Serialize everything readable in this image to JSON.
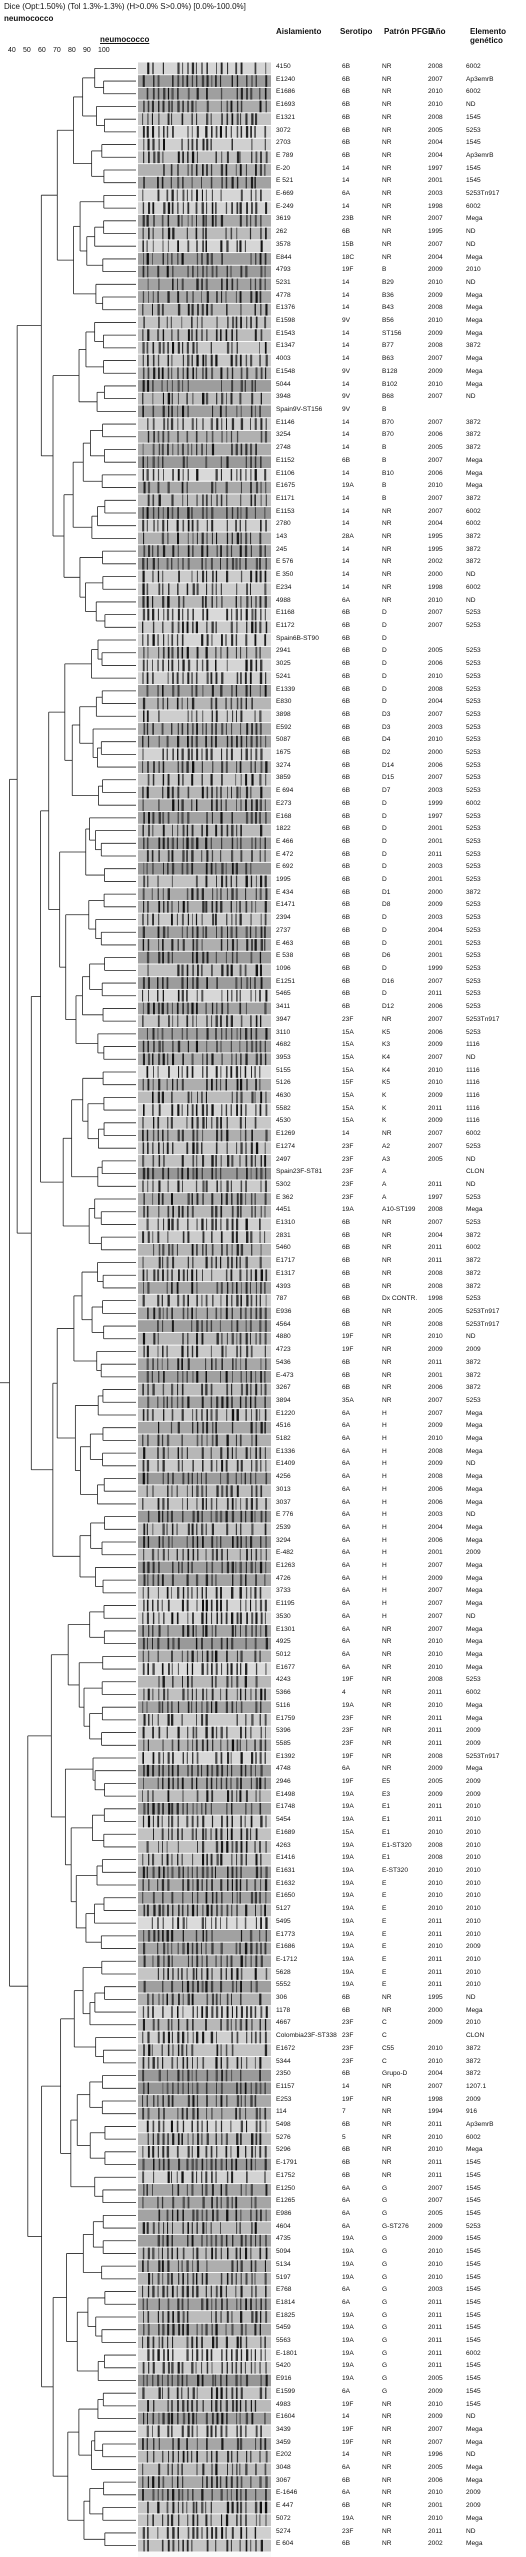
{
  "header": {
    "dice_line": "Dice (Opt:1.50%) (Tol 1.3%-1.3%) (H>0.0% S>0.0%) [0.0%-100.0%]",
    "species_top": "neumococco",
    "species_gel": "neumococco",
    "scale_ticks": [
      "40",
      "50",
      "60",
      "70",
      "80",
      "90",
      "100"
    ]
  },
  "columns": {
    "aislamiento": "Aislamiento",
    "serotipo": "Serotipo",
    "pfge": "Patrón PFGE",
    "year": "Año",
    "genetico": "Elemento genético"
  },
  "rows": [
    [
      "4150",
      "6B",
      "NR",
      "2008",
      "6002"
    ],
    [
      "E1240",
      "6B",
      "NR",
      "2007",
      "Ap3emrB"
    ],
    [
      "E1686",
      "6B",
      "NR",
      "2010",
      "6002"
    ],
    [
      "E1693",
      "6B",
      "NR",
      "2010",
      "ND"
    ],
    [
      "E1321",
      "6B",
      "NR",
      "2008",
      "1545"
    ],
    [
      "3072",
      "6B",
      "NR",
      "2005",
      "5253"
    ],
    [
      "2703",
      "6B",
      "NR",
      "2004",
      "1545"
    ],
    [
      "E 789",
      "6B",
      "NR",
      "2004",
      "Ap3emrB"
    ],
    [
      "E-20",
      "14",
      "NR",
      "1997",
      "1545"
    ],
    [
      "E 521",
      "14",
      "NR",
      "2001",
      "1545"
    ],
    [
      "E-669",
      "6A",
      "NR",
      "2003",
      "5253Tn917"
    ],
    [
      "E-249",
      "14",
      "NR",
      "1998",
      "6002"
    ],
    [
      "3619",
      "23B",
      "NR",
      "2007",
      "Mega"
    ],
    [
      "262",
      "6B",
      "NR",
      "1995",
      "ND"
    ],
    [
      "3578",
      "15B",
      "NR",
      "2007",
      "ND"
    ],
    [
      "E844",
      "18C",
      "NR",
      "2004",
      "Mega"
    ],
    [
      "4793",
      "19F",
      "B",
      "2009",
      "2010"
    ],
    [
      "5231",
      "14",
      "B29",
      "2010",
      "ND"
    ],
    [
      "4778",
      "14",
      "B36",
      "2009",
      "Mega"
    ],
    [
      "E1376",
      "14",
      "B43",
      "2008",
      "Mega"
    ],
    [
      "E1598",
      "9V",
      "B56",
      "2010",
      "Mega"
    ],
    [
      "E1543",
      "14",
      "ST156",
      "2009",
      "Mega"
    ],
    [
      "E1347",
      "14",
      "B77",
      "2008",
      "3872"
    ],
    [
      "4003",
      "14",
      "B63",
      "2007",
      "Mega"
    ],
    [
      "E1548",
      "9V",
      "B128",
      "2009",
      "Mega"
    ],
    [
      "5044",
      "14",
      "B102",
      "2010",
      "Mega"
    ],
    [
      "3948",
      "9V",
      "B68",
      "2007",
      "ND"
    ],
    [
      "Spain9V-ST156",
      "9V",
      "B",
      "",
      ""
    ],
    [
      "E1146",
      "14",
      "B70",
      "2007",
      "3872"
    ],
    [
      "3254",
      "14",
      "B70",
      "2006",
      "3872"
    ],
    [
      "2748",
      "14",
      "B",
      "2005",
      "3872"
    ],
    [
      "E1152",
      "6B",
      "B",
      "2007",
      "Mega"
    ],
    [
      "E1106",
      "14",
      "B10",
      "2006",
      "Mega"
    ],
    [
      "E1675",
      "19A",
      "B",
      "2010",
      "Mega"
    ],
    [
      "E1171",
      "14",
      "B",
      "2007",
      "3872"
    ],
    [
      "E1153",
      "14",
      "NR",
      "2007",
      "6002"
    ],
    [
      "2780",
      "14",
      "NR",
      "2004",
      "6002"
    ],
    [
      "143",
      "28A",
      "NR",
      "1995",
      "3872"
    ],
    [
      "245",
      "14",
      "NR",
      "1995",
      "3872"
    ],
    [
      "E 576",
      "14",
      "NR",
      "2002",
      "3872"
    ],
    [
      "E 350",
      "14",
      "NR",
      "2000",
      "ND"
    ],
    [
      "E234",
      "14",
      "NR",
      "1998",
      "6002"
    ],
    [
      "4988",
      "6A",
      "NR",
      "2010",
      "ND"
    ],
    [
      "E1168",
      "6B",
      "D",
      "2007",
      "5253"
    ],
    [
      "E1172",
      "6B",
      "D",
      "2007",
      "5253"
    ],
    [
      "Spain6B-ST90",
      "6B",
      "D",
      "",
      ""
    ],
    [
      "2941",
      "6B",
      "D",
      "2005",
      "5253"
    ],
    [
      "3025",
      "6B",
      "D",
      "2006",
      "5253"
    ],
    [
      "5241",
      "6B",
      "D",
      "2010",
      "5253"
    ],
    [
      "E1339",
      "6B",
      "D",
      "2008",
      "5253"
    ],
    [
      "E830",
      "6B",
      "D",
      "2004",
      "5253"
    ],
    [
      "3898",
      "6B",
      "D3",
      "2007",
      "5253"
    ],
    [
      "E592",
      "6B",
      "D3",
      "2003",
      "5253"
    ],
    [
      "5087",
      "6B",
      "D4",
      "2010",
      "5253"
    ],
    [
      "1675",
      "6B",
      "D2",
      "2000",
      "5253"
    ],
    [
      "3274",
      "6B",
      "D14",
      "2006",
      "5253"
    ],
    [
      "3859",
      "6B",
      "D15",
      "2007",
      "5253"
    ],
    [
      "E 694",
      "6B",
      "D7",
      "2003",
      "5253"
    ],
    [
      "E273",
      "6B",
      "D",
      "1999",
      "6002"
    ],
    [
      "E168",
      "6B",
      "D",
      "1997",
      "5253"
    ],
    [
      "1822",
      "6B",
      "D",
      "2001",
      "5253"
    ],
    [
      "E 466",
      "6B",
      "D",
      "2001",
      "5253"
    ],
    [
      "E 472",
      "6B",
      "D",
      "2011",
      "5253"
    ],
    [
      "E 692",
      "6B",
      "D",
      "2003",
      "5253"
    ],
    [
      "1995",
      "6B",
      "D",
      "2001",
      "5253"
    ],
    [
      "E 434",
      "6B",
      "D1",
      "2000",
      "3872"
    ],
    [
      "E1471",
      "6B",
      "D8",
      "2009",
      "5253"
    ],
    [
      "2394",
      "6B",
      "D",
      "2003",
      "5253"
    ],
    [
      "2737",
      "6B",
      "D",
      "2004",
      "5253"
    ],
    [
      "E 463",
      "6B",
      "D",
      "2001",
      "5253"
    ],
    [
      "E 538",
      "6B",
      "D6",
      "2001",
      "5253"
    ],
    [
      "1096",
      "6B",
      "D",
      "1999",
      "5253"
    ],
    [
      "E1251",
      "6B",
      "D16",
      "2007",
      "5253"
    ],
    [
      "5465",
      "6B",
      "D",
      "2011",
      "5253"
    ],
    [
      "3411",
      "6B",
      "D12",
      "2006",
      "5253"
    ],
    [
      "3947",
      "23F",
      "NR",
      "2007",
      "5253Tn917"
    ],
    [
      "3110",
      "15A",
      "K5",
      "2006",
      "5253"
    ],
    [
      "4682",
      "15A",
      "K3",
      "2009",
      "1116"
    ],
    [
      "3953",
      "15A",
      "K4",
      "2007",
      "ND"
    ],
    [
      "5155",
      "15A",
      "K4",
      "2010",
      "1116"
    ],
    [
      "5126",
      "15F",
      "K5",
      "2010",
      "1116"
    ],
    [
      "4630",
      "15A",
      "K",
      "2009",
      "1116"
    ],
    [
      "5582",
      "15A",
      "K",
      "2011",
      "1116"
    ],
    [
      "4530",
      "15A",
      "K",
      "2009",
      "1116"
    ],
    [
      "E1269",
      "14",
      "NR",
      "2007",
      "6002"
    ],
    [
      "E1274",
      "23F",
      "A2",
      "2007",
      "5253"
    ],
    [
      "2497",
      "23F",
      "A3",
      "2005",
      "ND"
    ],
    [
      "Spain23F-ST81",
      "23F",
      "A",
      "",
      "CLON"
    ],
    [
      "5302",
      "23F",
      "A",
      "2011",
      "ND"
    ],
    [
      "E 362",
      "23F",
      "A",
      "1997",
      "5253"
    ],
    [
      "4451",
      "19A",
      "A10-ST199",
      "2008",
      "Mega"
    ],
    [
      "E1310",
      "6B",
      "NR",
      "2007",
      "5253"
    ],
    [
      "2831",
      "6B",
      "NR",
      "2004",
      "3872"
    ],
    [
      "5460",
      "6B",
      "NR",
      "2011",
      "6002"
    ],
    [
      "E1717",
      "6B",
      "NR",
      "2011",
      "3872"
    ],
    [
      "E1317",
      "6B",
      "NR",
      "2008",
      "3872"
    ],
    [
      "4393",
      "6B",
      "NR",
      "2008",
      "3872"
    ],
    [
      "787",
      "6B",
      "Dx CONTR.",
      "1998",
      "5253"
    ],
    [
      "E936",
      "6B",
      "NR",
      "2005",
      "5253Tn917"
    ],
    [
      "4564",
      "6B",
      "NR",
      "2008",
      "5253Tn917"
    ],
    [
      "4880",
      "19F",
      "NR",
      "2010",
      "ND"
    ],
    [
      "4723",
      "19F",
      "NR",
      "2009",
      "2009"
    ],
    [
      "5436",
      "6B",
      "NR",
      "2011",
      "3872"
    ],
    [
      "E-473",
      "6B",
      "NR",
      "2001",
      "3872"
    ],
    [
      "3267",
      "6B",
      "NR",
      "2006",
      "3872"
    ],
    [
      "3894",
      "35A",
      "NR",
      "2007",
      "5253"
    ],
    [
      "E1220",
      "6A",
      "H",
      "2007",
      "Mega"
    ],
    [
      "4516",
      "6A",
      "H",
      "2009",
      "Mega"
    ],
    [
      "5182",
      "6A",
      "H",
      "2010",
      "Mega"
    ],
    [
      "E1336",
      "6A",
      "H",
      "2008",
      "Mega"
    ],
    [
      "E1409",
      "6A",
      "H",
      "2009",
      "ND"
    ],
    [
      "4256",
      "6A",
      "H",
      "2008",
      "Mega"
    ],
    [
      "3013",
      "6A",
      "H",
      "2006",
      "Mega"
    ],
    [
      "3037",
      "6A",
      "H",
      "2006",
      "Mega"
    ],
    [
      "E 776",
      "6A",
      "H",
      "2003",
      "ND"
    ],
    [
      "2539",
      "6A",
      "H",
      "2004",
      "Mega"
    ],
    [
      "3294",
      "6A",
      "H",
      "2006",
      "Mega"
    ],
    [
      "E-482",
      "6A",
      "H",
      "2001",
      "2009"
    ],
    [
      "E1263",
      "6A",
      "H",
      "2007",
      "Mega"
    ],
    [
      "4726",
      "6A",
      "H",
      "2009",
      "Mega"
    ],
    [
      "3733",
      "6A",
      "H",
      "2007",
      "Mega"
    ],
    [
      "E1195",
      "6A",
      "H",
      "2007",
      "Mega"
    ],
    [
      "3530",
      "6A",
      "H",
      "2007",
      "ND"
    ],
    [
      "E1301",
      "6A",
      "NR",
      "2007",
      "Mega"
    ],
    [
      "4925",
      "6A",
      "NR",
      "2010",
      "Mega"
    ],
    [
      "5012",
      "6A",
      "NR",
      "2010",
      "Mega"
    ],
    [
      "E1677",
      "6A",
      "NR",
      "2010",
      "Mega"
    ],
    [
      "4243",
      "19F",
      "NR",
      "2008",
      "5253"
    ],
    [
      "5366",
      "4",
      "NR",
      "2011",
      "6002"
    ],
    [
      "5116",
      "19A",
      "NR",
      "2010",
      "Mega"
    ],
    [
      "E1759",
      "23F",
      "NR",
      "2011",
      "Mega"
    ],
    [
      "5396",
      "23F",
      "NR",
      "2011",
      "2009"
    ],
    [
      "5585",
      "23F",
      "NR",
      "2011",
      "2009"
    ],
    [
      "E1392",
      "19F",
      "NR",
      "2008",
      "5253Tn917"
    ],
    [
      "4748",
      "6A",
      "NR",
      "2009",
      "Mega"
    ],
    [
      "2946",
      "19F",
      "E5",
      "2005",
      "2009"
    ],
    [
      "E1498",
      "19A",
      "E3",
      "2009",
      "2009"
    ],
    [
      "E1748",
      "19A",
      "E1",
      "2011",
      "2010"
    ],
    [
      "5454",
      "19A",
      "E1",
      "2011",
      "2010"
    ],
    [
      "E1689",
      "15A",
      "E1",
      "2010",
      "2010"
    ],
    [
      "4263",
      "19A",
      "E1-ST320",
      "2008",
      "2010"
    ],
    [
      "E1416",
      "19A",
      "E1",
      "2008",
      "2010"
    ],
    [
      "E1631",
      "19A",
      "E-ST320",
      "2010",
      "2010"
    ],
    [
      "E1632",
      "19A",
      "E",
      "2010",
      "2010"
    ],
    [
      "E1650",
      "19A",
      "E",
      "2010",
      "2010"
    ],
    [
      "5127",
      "19A",
      "E",
      "2010",
      "2010"
    ],
    [
      "5495",
      "19A",
      "E",
      "2011",
      "2010"
    ],
    [
      "E1773",
      "19A",
      "E",
      "2011",
      "2010"
    ],
    [
      "E1686",
      "19A",
      "E",
      "2010",
      "2009"
    ],
    [
      "E-1712",
      "19A",
      "E",
      "2011",
      "2010"
    ],
    [
      "5628",
      "19A",
      "E",
      "2011",
      "2010"
    ],
    [
      "5552",
      "19A",
      "E",
      "2011",
      "2010"
    ],
    [
      "306",
      "6B",
      "NR",
      "1995",
      "ND"
    ],
    [
      "1178",
      "6B",
      "NR",
      "2000",
      "Mega"
    ],
    [
      "4667",
      "23F",
      "C",
      "2009",
      "2010"
    ],
    [
      "Colombia23F-ST338",
      "23F",
      "C",
      "",
      "CLON"
    ],
    [
      "E1672",
      "23F",
      "C55",
      "2010",
      "3872"
    ],
    [
      "5344",
      "23F",
      "C",
      "2010",
      "3872"
    ],
    [
      "2350",
      "6B",
      "Grupo-D",
      "2004",
      "3872"
    ],
    [
      "E1157",
      "14",
      "NR",
      "2007",
      "1207.1"
    ],
    [
      "E253",
      "19F",
      "NR",
      "1998",
      "2009"
    ],
    [
      "114",
      "7",
      "NR",
      "1994",
      "916"
    ],
    [
      "5498",
      "6B",
      "NR",
      "2011",
      "Ap3emrB"
    ],
    [
      "5276",
      "5",
      "NR",
      "2010",
      "6002"
    ],
    [
      "5296",
      "6B",
      "NR",
      "2010",
      "Mega"
    ],
    [
      "E-1791",
      "6B",
      "NR",
      "2011",
      "1545"
    ],
    [
      "E1752",
      "6B",
      "NR",
      "2011",
      "1545"
    ],
    [
      "E1250",
      "6A",
      "G",
      "2007",
      "1545"
    ],
    [
      "E1265",
      "6A",
      "G",
      "2007",
      "1545"
    ],
    [
      "E986",
      "6A",
      "G",
      "2005",
      "1545"
    ],
    [
      "4604",
      "6A",
      "G-ST276",
      "2009",
      "5253"
    ],
    [
      "4735",
      "19A",
      "G",
      "2009",
      "1545"
    ],
    [
      "5094",
      "19A",
      "G",
      "2010",
      "1545"
    ],
    [
      "5134",
      "19A",
      "G",
      "2010",
      "1545"
    ],
    [
      "5197",
      "19A",
      "G",
      "2010",
      "1545"
    ],
    [
      "E768",
      "6A",
      "G",
      "2003",
      "1545"
    ],
    [
      "E1814",
      "6A",
      "G",
      "2011",
      "1545"
    ],
    [
      "E1825",
      "19A",
      "G",
      "2011",
      "1545"
    ],
    [
      "5459",
      "19A",
      "G",
      "2011",
      "1545"
    ],
    [
      "5563",
      "19A",
      "G",
      "2011",
      "1545"
    ],
    [
      "E-1801",
      "19A",
      "G",
      "2011",
      "6002"
    ],
    [
      "5420",
      "19A",
      "G",
      "2011",
      "1545"
    ],
    [
      "E916",
      "19A",
      "G",
      "2005",
      "1545"
    ],
    [
      "E1599",
      "6A",
      "G",
      "2009",
      "1545"
    ],
    [
      "4983",
      "19F",
      "NR",
      "2010",
      "1545"
    ],
    [
      "E1604",
      "14",
      "NR",
      "2009",
      "ND"
    ],
    [
      "3439",
      "19F",
      "NR",
      "2007",
      "Mega"
    ],
    [
      "3459",
      "19F",
      "NR",
      "2007",
      "Mega"
    ],
    [
      "E202",
      "14",
      "NR",
      "1996",
      "ND"
    ],
    [
      "3048",
      "6A",
      "NR",
      "2005",
      "Mega"
    ],
    [
      "3067",
      "6B",
      "NR",
      "2006",
      "Mega"
    ],
    [
      "E-1646",
      "6A",
      "NR",
      "2010",
      "2009"
    ],
    [
      "E 447",
      "6B",
      "NR",
      "2001",
      "2009"
    ],
    [
      "5072",
      "19A",
      "NR",
      "2010",
      "Mega"
    ],
    [
      "5274",
      "23F",
      "NR",
      "2011",
      "ND"
    ],
    [
      "E 604",
      "6B",
      "NR",
      "2002",
      "Mega"
    ]
  ]
}
